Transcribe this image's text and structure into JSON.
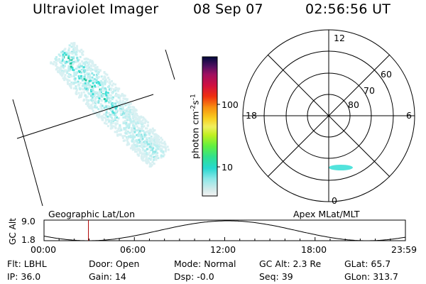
{
  "header": {
    "title": "Ultraviolet Imager",
    "date": "08 Sep 07",
    "time": "02:56:56 UT"
  },
  "colorbar": {
    "label": "photon cm",
    "label_sup1": "-2",
    "label_mid": "s",
    "label_sup2": "-1",
    "ticks": [
      "100",
      "10"
    ]
  },
  "polar": {
    "clock_labels": [
      "12",
      "18",
      "6",
      "0"
    ],
    "lat_labels": [
      "60",
      "70",
      "80"
    ]
  },
  "altitude_plot": {
    "ylabel": "GC Alt",
    "ymax": "9.0",
    "ymin": "1.8",
    "left_title": "Geographic Lat/Lon",
    "right_title": "Apex  MLat/MLT",
    "time_ticks": [
      "00:00",
      "06:00",
      "12:00",
      "18:00",
      "23:59"
    ],
    "marker_time_hours": 2.95
  },
  "status": {
    "row1": [
      {
        "key": "Flt:",
        "value": "LBHL"
      },
      {
        "key": "Door:",
        "value": "Open"
      },
      {
        "key": "Mode:",
        "value": "Normal"
      },
      {
        "key": "GC Alt:",
        "value": "2.3 Re"
      },
      {
        "key": "GLat:",
        "value": "65.7"
      }
    ],
    "row2": [
      {
        "key": "IP:",
        "value": "36.0"
      },
      {
        "key": "Gain:",
        "value": "14"
      },
      {
        "key": "Dsp:",
        "value": "-0.0"
      },
      {
        "key": "Seq:",
        "value": "39"
      },
      {
        "key": "GLon:",
        "value": "313.7"
      }
    ]
  },
  "colors": {
    "aurora_low": "#d8f0f2",
    "aurora_mid": "#3fe0d8",
    "aurora_high": "#22c8a0",
    "marker": "#b00000"
  }
}
